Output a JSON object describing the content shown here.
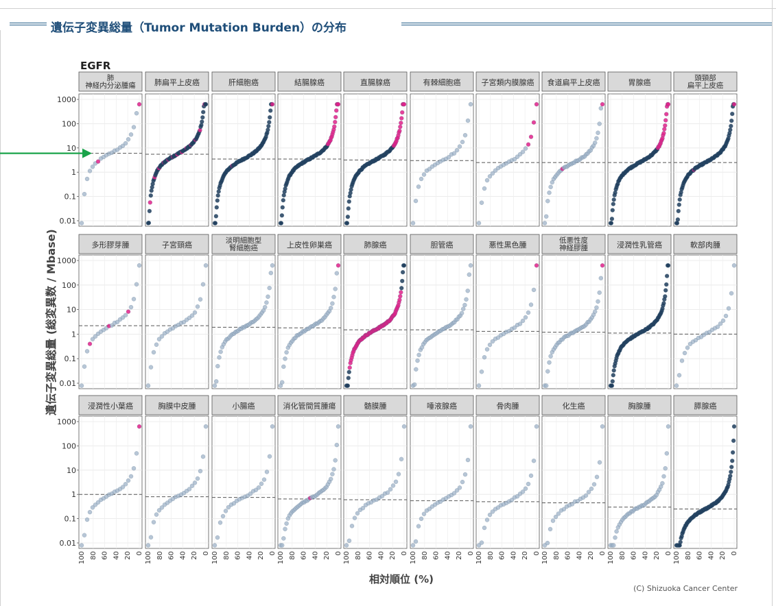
{
  "header": {
    "title": "遺伝子変異総量（Tumor Mutation Burden）の分布"
  },
  "chart": {
    "gene_label": "EGFR",
    "ylabel": "遺伝子変異総量 (総変異数 / Mbase)",
    "xlabel": "相対順位 (%)",
    "credit": "(C) Shizuoka Cancer Center",
    "y_ticks": [
      "1000",
      "100",
      "10",
      "1",
      "0.1",
      "0.01"
    ],
    "x_ticks": [
      "100",
      "80",
      "60",
      "40",
      "20",
      "0"
    ]
  },
  "colors": {
    "accent_header": "#1f4e79",
    "point_light": "#9fb3c8",
    "point_dark": "#1e3d5c",
    "point_highlight": "#e0218a",
    "arrow": "#1aa34a",
    "strip_bg": "#d9d9d9"
  },
  "chart_data": {
    "type": "scatter",
    "facet_grid": "3 rows x 10 columns",
    "x_axis": "相対順位 (%)",
    "x_range": [
      100,
      0
    ],
    "y_axis": "遺伝子変異総量 (総変異数 / Mbase)",
    "y_scale": "log",
    "y_range": [
      0.01,
      1000
    ],
    "legend": "none",
    "panels": [
      {
        "name": "肺\n神経内分泌腫瘍",
        "median": 6,
        "density": "sparse",
        "highlight": "few"
      },
      {
        "name": "肺扁平上皮癌",
        "median": 5.5,
        "density": "dense",
        "highlight": "some"
      },
      {
        "name": "肝細胞癌",
        "median": 3.5,
        "density": "dense",
        "highlight": "few"
      },
      {
        "name": "結腸腺癌",
        "median": 3.5,
        "density": "dense",
        "highlight": "many-top"
      },
      {
        "name": "直腸腺癌",
        "median": 3.2,
        "density": "dense",
        "highlight": "many-top"
      },
      {
        "name": "有棘細胞癌",
        "median": 3,
        "density": "sparse",
        "highlight": "none"
      },
      {
        "name": "子宮類内膜腺癌",
        "median": 2.5,
        "density": "sparse",
        "highlight": "many-top"
      },
      {
        "name": "食道扁平上皮癌",
        "median": 2.5,
        "density": "medium",
        "highlight": "few"
      },
      {
        "name": "胃腺癌",
        "median": 2.5,
        "density": "dense",
        "highlight": "many-top"
      },
      {
        "name": "頭頸部\n扁平上皮癌",
        "median": 2.5,
        "density": "dense",
        "highlight": "few"
      },
      {
        "name": "多形膠芽腫",
        "median": 2.2,
        "density": "sparse",
        "highlight": "some"
      },
      {
        "name": "子宮頸癌",
        "median": 2.2,
        "density": "sparse",
        "highlight": "none"
      },
      {
        "name": "淡明細胞型\n腎細胞癌",
        "median": 1.9,
        "density": "medium",
        "highlight": "none"
      },
      {
        "name": "上皮性卵巣癌",
        "median": 1.8,
        "density": "medium",
        "highlight": "one-top"
      },
      {
        "name": "肺腺癌",
        "median": 1.5,
        "density": "dense",
        "highlight": "many"
      },
      {
        "name": "胆管癌",
        "median": 1.5,
        "density": "medium",
        "highlight": "none"
      },
      {
        "name": "悪性黒色腫",
        "median": 1.3,
        "density": "sparse",
        "highlight": "one-top"
      },
      {
        "name": "低悪性度\n神経膠腫",
        "median": 1.2,
        "density": "medium",
        "highlight": "one-top"
      },
      {
        "name": "浸潤性乳管癌",
        "median": 1.1,
        "density": "dense",
        "highlight": "none"
      },
      {
        "name": "軟部肉腫",
        "median": 1.0,
        "density": "sparse",
        "highlight": "none"
      },
      {
        "name": "浸潤性小葉癌",
        "median": 1.0,
        "density": "sparse",
        "highlight": "one-top"
      },
      {
        "name": "胸膜中皮腫",
        "median": 0.8,
        "density": "sparse",
        "highlight": "none"
      },
      {
        "name": "小腸癌",
        "median": 0.75,
        "density": "sparse",
        "highlight": "none"
      },
      {
        "name": "消化管間質腫瘍",
        "median": 0.65,
        "density": "medium",
        "highlight": "one"
      },
      {
        "name": "髄膜腫",
        "median": 0.6,
        "density": "sparse",
        "highlight": "none"
      },
      {
        "name": "唾液腺癌",
        "median": 0.55,
        "density": "sparse",
        "highlight": "none"
      },
      {
        "name": "骨肉腫",
        "median": 0.5,
        "density": "sparse",
        "highlight": "none"
      },
      {
        "name": "化生癌",
        "median": 0.45,
        "density": "sparse",
        "highlight": "none"
      },
      {
        "name": "胸腺腫",
        "median": 0.3,
        "density": "medium",
        "highlight": "none"
      },
      {
        "name": "膵腺癌",
        "median": 0.25,
        "density": "dense",
        "highlight": "none"
      }
    ]
  }
}
